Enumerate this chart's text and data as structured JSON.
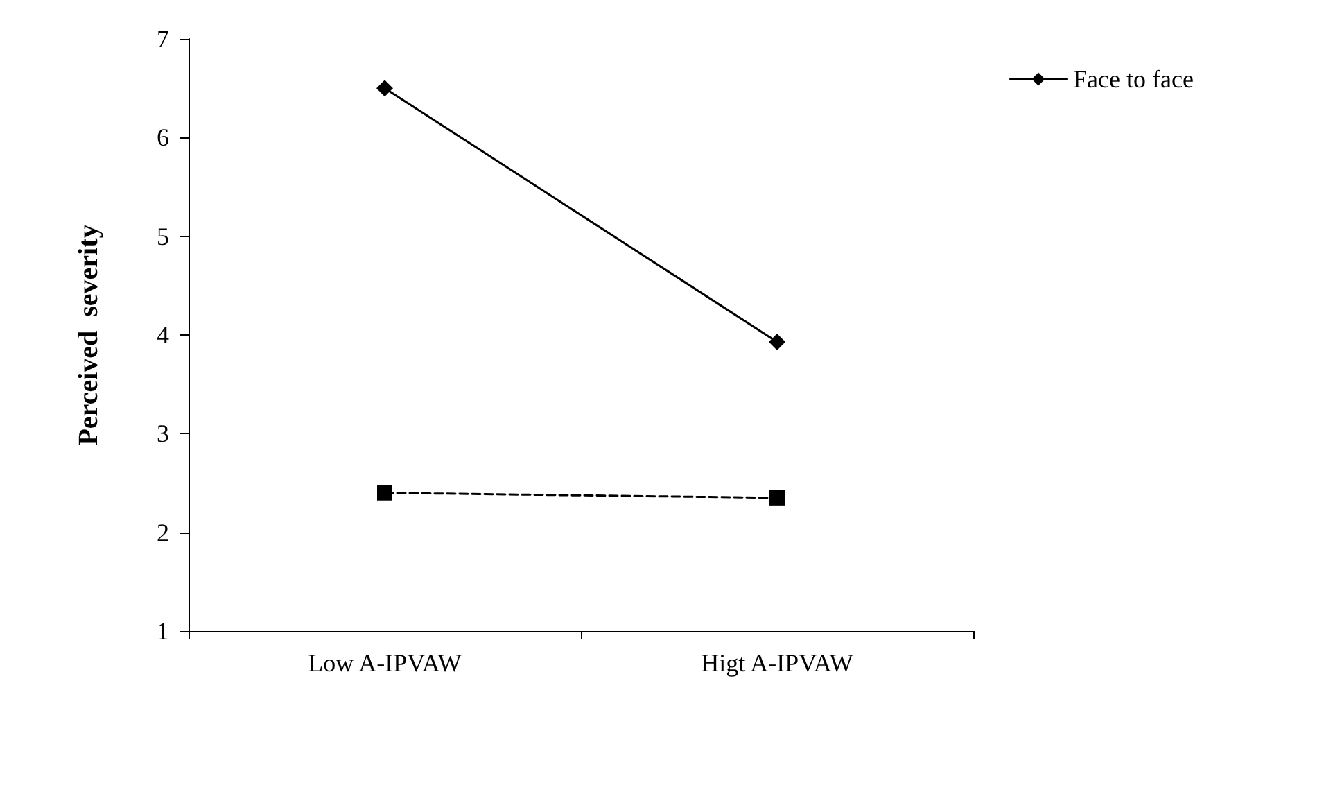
{
  "chart_data": {
    "type": "line",
    "ylabel": "Perceived  severity",
    "categories": [
      "Low A-IPVAW",
      "Higt A-IPVAW"
    ],
    "series": [
      {
        "name": "Face to face",
        "color": "#000000",
        "values": [
          6.5,
          3.93
        ],
        "marker": "diamond",
        "line_style": "solid"
      },
      {
        "color": "#000000",
        "values": [
          2.4,
          2.35
        ],
        "marker": "square",
        "line_style": "dashed"
      }
    ],
    "ylim": [
      1,
      7
    ],
    "yticks": [
      1,
      2,
      3,
      4,
      5,
      6,
      7
    ],
    "grid": false,
    "legend": "top right"
  }
}
